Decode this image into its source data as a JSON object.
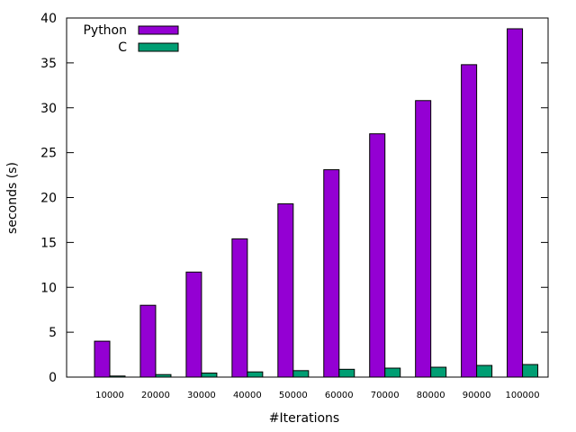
{
  "chart_data": {
    "type": "bar",
    "title": "",
    "xlabel": "#Iterations",
    "ylabel": "seconds (s)",
    "ylim": [
      0,
      40
    ],
    "yticks": [
      0,
      5,
      10,
      15,
      20,
      25,
      30,
      35,
      40
    ],
    "categories": [
      "10000",
      "20000",
      "30000",
      "40000",
      "50000",
      "60000",
      "70000",
      "80000",
      "90000",
      "100000"
    ],
    "series": [
      {
        "name": "Python",
        "color": "#9400d3",
        "values": [
          4.0,
          8.0,
          11.7,
          15.4,
          19.3,
          23.1,
          27.1,
          30.8,
          34.8,
          38.8
        ]
      },
      {
        "name": "C",
        "color": "#009e73",
        "values": [
          0.12,
          0.28,
          0.45,
          0.58,
          0.72,
          0.87,
          1.0,
          1.1,
          1.3,
          1.4
        ]
      }
    ],
    "legend": {
      "position": "top-left"
    },
    "grid": false
  }
}
